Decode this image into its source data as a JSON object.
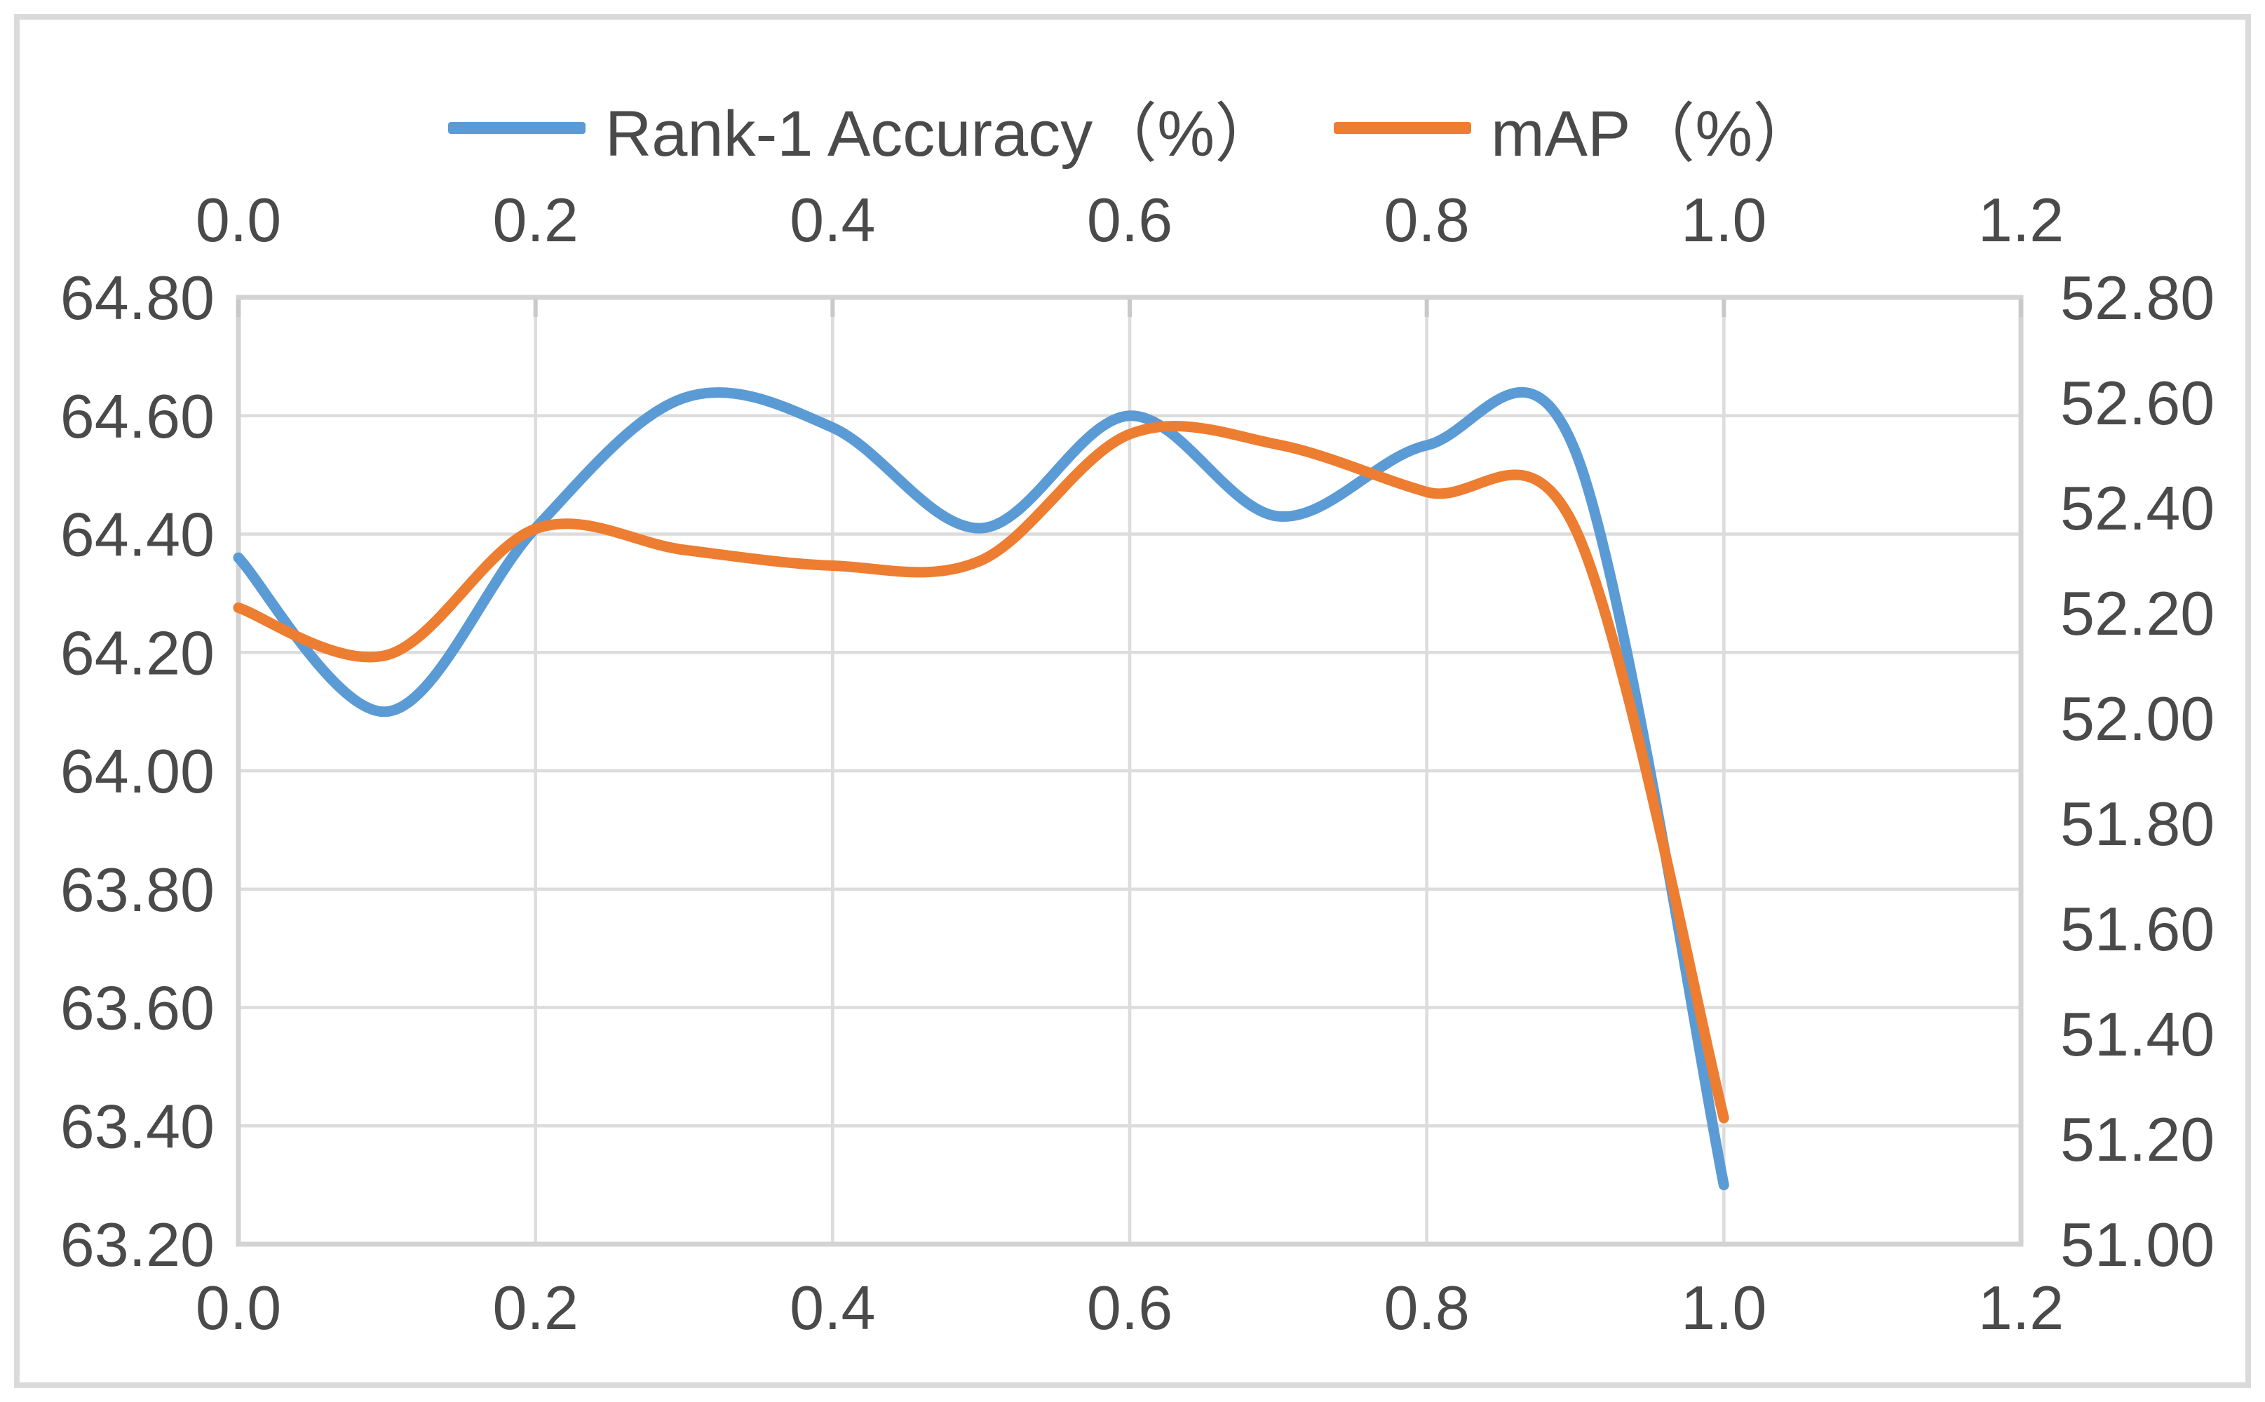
{
  "chart_data": {
    "type": "line",
    "title": "",
    "grid": true,
    "legend_position": "top-center",
    "x": [
      0.0,
      0.1,
      0.2,
      0.3,
      0.4,
      0.5,
      0.6,
      0.7,
      0.8,
      0.9,
      1.0
    ],
    "series": [
      {
        "name": "Rank-1 Accuracy（%）",
        "axis": "left",
        "color": "#5B9BD5",
        "values": [
          64.36,
          64.1,
          64.41,
          64.63,
          64.58,
          64.41,
          64.6,
          64.43,
          64.55,
          64.54,
          63.3
        ]
      },
      {
        "name": "mAP（%）",
        "axis": "right",
        "color": "#ED7D31",
        "values": [
          52.21,
          52.12,
          52.36,
          52.32,
          52.29,
          52.3,
          52.54,
          52.52,
          52.43,
          52.36,
          51.24
        ]
      }
    ],
    "x_axis": {
      "min": 0.0,
      "max": 1.2,
      "tick_step": 0.2,
      "tick_labels": [
        "0.0",
        "0.2",
        "0.4",
        "0.6",
        "0.8",
        "1.0",
        "1.2"
      ],
      "shown": "top and bottom"
    },
    "y_axis_left": {
      "min": 63.2,
      "max": 64.8,
      "tick_step": 0.2,
      "tick_labels": [
        "64.80",
        "64.60",
        "64.40",
        "64.20",
        "64.00",
        "63.80",
        "63.60",
        "63.40",
        "63.20"
      ]
    },
    "y_axis_right": {
      "min": 51.0,
      "max": 52.8,
      "tick_step": 0.2,
      "tick_labels": [
        "52.80",
        "52.60",
        "52.40",
        "52.20",
        "52.00",
        "51.80",
        "51.60",
        "51.40",
        "51.20",
        "51.00"
      ]
    }
  },
  "legend": {
    "series1_label": "Rank-1 Accuracy（%）",
    "series2_label": "mAP（%）"
  },
  "colors": {
    "series1": "#5B9BD5",
    "series2": "#ED7D31",
    "gridline": "#dcdcdc",
    "plot_frame": "#d3d3d3",
    "axis_text": "#4a4a4a",
    "outer_border": "#dadada"
  }
}
